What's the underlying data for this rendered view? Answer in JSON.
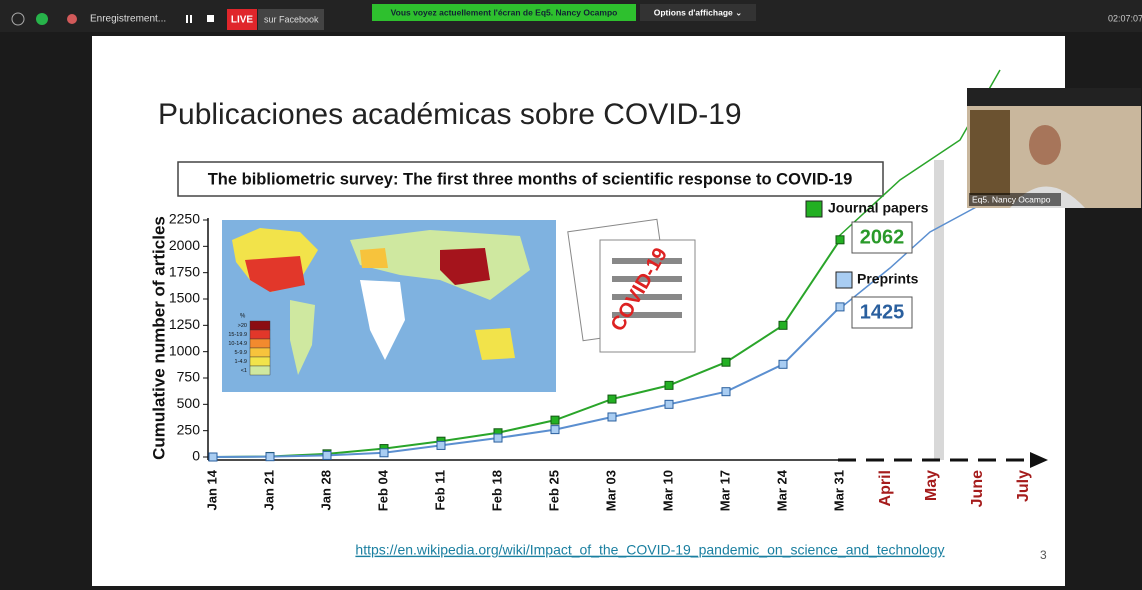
{
  "toolbar": {
    "recording": "Enregistrement...",
    "live": "LIVE",
    "live_target": "sur Facebook",
    "share_banner": "Vous voyez actuellement l'écran de Eq5. Nancy Ocampo",
    "view_options": "Options d'affichage ⌄",
    "clock": "02:07:07"
  },
  "video": {
    "name": "Eq5. Nancy Ocampo"
  },
  "slide": {
    "title": "Publicaciones académicas sobre COVID-19",
    "subtitle": "The bibliometric survey: The first three months of scientific response to COVID-19",
    "stamp": "COVID-19",
    "link": "https://en.wikipedia.org/wiki/Impact_of_the_COVID-19_pandemic_on_science_and_technology",
    "number": "3",
    "map_legend": {
      "title": "%",
      "labels": [
        ">20",
        "15-19.9",
        "10-14.9",
        "5-9.9",
        "1-4.9",
        "<1"
      ]
    }
  },
  "chart_data": {
    "type": "line",
    "y_label": "Cumulative number of articles",
    "categories": [
      "Jan 14",
      "Jan 21",
      "Jan 28",
      "Feb 04",
      "Feb 11",
      "Feb 18",
      "Feb 25",
      "Mar 03",
      "Mar 10",
      "Mar 17",
      "Mar 24",
      "Mar 31",
      "April",
      "May",
      "June",
      "July"
    ],
    "series": [
      {
        "name": "Journal papers",
        "color": "#2aa52a",
        "values": [
          0,
          5,
          30,
          80,
          150,
          230,
          350,
          550,
          680,
          900,
          1250,
          2062,
          null,
          null,
          null,
          null
        ]
      },
      {
        "name": "Preprints",
        "color": "#5b8fd0",
        "values": [
          0,
          3,
          15,
          40,
          110,
          180,
          260,
          380,
          500,
          620,
          880,
          1425,
          null,
          null,
          null,
          null
        ]
      }
    ],
    "ylim": [
      0,
      2250
    ],
    "yticks": [
      0,
      250,
      500,
      750,
      1000,
      1250,
      1500,
      1750,
      2000,
      2250
    ],
    "grid": false
  }
}
